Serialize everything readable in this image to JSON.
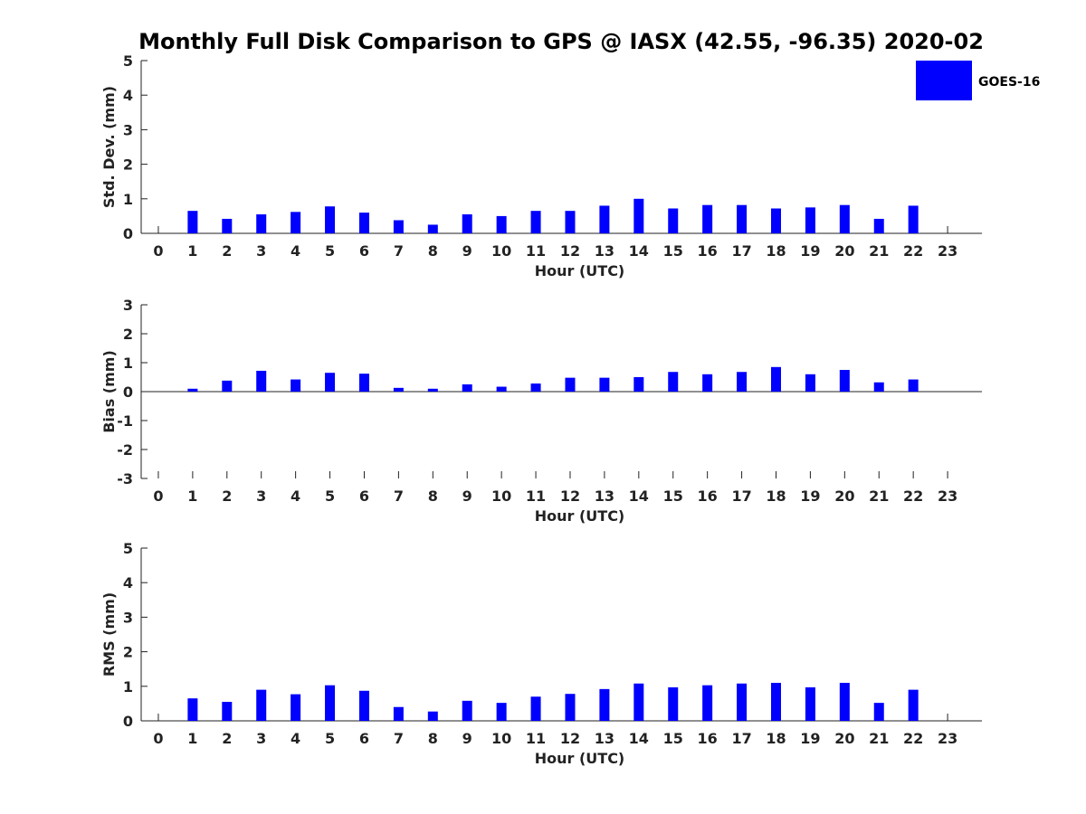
{
  "title": "Monthly Full Disk Comparison to GPS @ IASX (42.55, -96.35) 2020-02",
  "legend": {
    "label": "GOES-16",
    "color": "#0000ff",
    "placement": "top-right"
  },
  "chart_data": [
    {
      "type": "bar",
      "ylabel": "Std. Dev. (mm)",
      "xlabel": "Hour (UTC)",
      "ylim": [
        0,
        5
      ],
      "yticks": [
        "0",
        "1",
        "2",
        "3",
        "4",
        "5"
      ],
      "x": [
        "0",
        "1",
        "2",
        "3",
        "4",
        "5",
        "6",
        "7",
        "8",
        "9",
        "10",
        "11",
        "12",
        "13",
        "14",
        "15",
        "16",
        "17",
        "18",
        "19",
        "20",
        "21",
        "22",
        "23"
      ],
      "series": [
        {
          "name": "GOES-16",
          "color": "#0000ff",
          "values": [
            null,
            0.65,
            0.42,
            0.55,
            0.62,
            0.78,
            0.6,
            0.38,
            0.25,
            0.55,
            0.5,
            0.65,
            0.65,
            0.8,
            1.0,
            0.72,
            0.82,
            0.82,
            0.72,
            0.75,
            0.82,
            0.42,
            0.8,
            null
          ]
        }
      ]
    },
    {
      "type": "bar",
      "ylabel": "Bias (mm)",
      "xlabel": "Hour (UTC)",
      "ylim": [
        -3,
        3
      ],
      "yticks": [
        "-3",
        "-2",
        "-1",
        "0",
        "1",
        "2",
        "3"
      ],
      "x": [
        "0",
        "1",
        "2",
        "3",
        "4",
        "5",
        "6",
        "7",
        "8",
        "9",
        "10",
        "11",
        "12",
        "13",
        "14",
        "15",
        "16",
        "17",
        "18",
        "19",
        "20",
        "21",
        "22",
        "23"
      ],
      "series": [
        {
          "name": "GOES-16",
          "color": "#0000ff",
          "values": [
            null,
            0.1,
            0.38,
            0.72,
            0.42,
            0.65,
            0.62,
            0.13,
            0.1,
            0.25,
            0.17,
            0.28,
            0.48,
            0.48,
            0.5,
            0.68,
            0.6,
            0.68,
            0.85,
            0.6,
            0.75,
            0.32,
            0.42,
            null
          ]
        }
      ]
    },
    {
      "type": "bar",
      "ylabel": "RMS (mm)",
      "xlabel": "Hour (UTC)",
      "ylim": [
        0,
        5
      ],
      "yticks": [
        "0",
        "1",
        "2",
        "3",
        "4",
        "5"
      ],
      "x": [
        "0",
        "1",
        "2",
        "3",
        "4",
        "5",
        "6",
        "7",
        "8",
        "9",
        "10",
        "11",
        "12",
        "13",
        "14",
        "15",
        "16",
        "17",
        "18",
        "19",
        "20",
        "21",
        "22",
        "23"
      ],
      "series": [
        {
          "name": "GOES-16",
          "color": "#0000ff",
          "values": [
            null,
            0.65,
            0.55,
            0.9,
            0.77,
            1.03,
            0.87,
            0.4,
            0.27,
            0.58,
            0.52,
            0.7,
            0.78,
            0.92,
            1.08,
            0.97,
            1.03,
            1.08,
            1.1,
            0.97,
            1.1,
            0.52,
            0.9,
            null
          ]
        }
      ]
    }
  ]
}
